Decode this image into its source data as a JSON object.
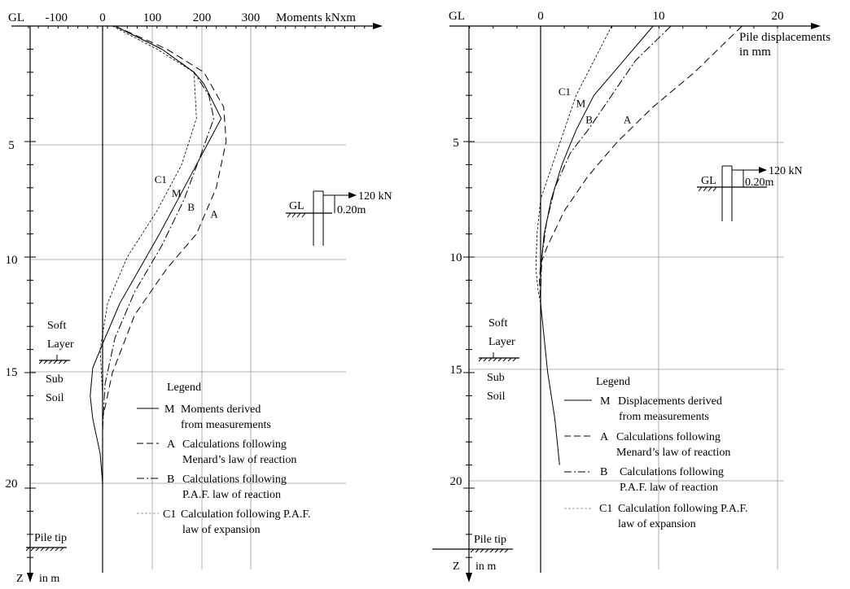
{
  "chart_data": [
    {
      "type": "line",
      "panel": "moments",
      "ground_label": "GL",
      "xlabel": "Moments kNxm",
      "ylabel": "Z",
      "ylabel_unit": "in m",
      "xlim": [
        -150,
        550
      ],
      "ylim": [
        0,
        23
      ],
      "x_ticks": [
        -100,
        0,
        100,
        200,
        300
      ],
      "y_ticks": [
        5,
        10,
        15,
        20
      ],
      "grid": true,
      "series": [
        {
          "name": "M",
          "style": "solid",
          "points": [
            [
              25,
              0
            ],
            [
              120,
              1
            ],
            [
              185,
              2
            ],
            [
              205,
              2.5
            ],
            [
              240,
              4
            ],
            [
              215,
              5
            ],
            [
              165,
              7
            ],
            [
              115,
              9
            ],
            [
              75,
              10.5
            ],
            [
              35,
              12
            ],
            [
              5,
              13.5
            ],
            [
              -20,
              14.8
            ],
            [
              -25,
              16
            ],
            [
              -20,
              17
            ],
            [
              -5,
              18.5
            ],
            [
              0,
              19.8
            ]
          ]
        },
        {
          "name": "A",
          "style": "dashed",
          "points": [
            [
              25,
              0
            ],
            [
              130,
              1
            ],
            [
              205,
              2
            ],
            [
              245,
              3.5
            ],
            [
              250,
              5
            ],
            [
              230,
              7
            ],
            [
              190,
              9
            ],
            [
              130,
              10.5
            ],
            [
              65,
              12.5
            ],
            [
              20,
              15
            ],
            [
              0,
              17
            ],
            [
              0,
              22.5
            ]
          ]
        },
        {
          "name": "B",
          "style": "dashdot",
          "points": [
            [
              25,
              0
            ],
            [
              120,
              1
            ],
            [
              185,
              2
            ],
            [
              215,
              3
            ],
            [
              225,
              4
            ],
            [
              200,
              5.5
            ],
            [
              165,
              7.5
            ],
            [
              120,
              9.5
            ],
            [
              65,
              11.5
            ],
            [
              25,
              13.5
            ],
            [
              5,
              15.5
            ],
            [
              0,
              17.5
            ],
            [
              0,
              22.5
            ]
          ]
        },
        {
          "name": "C1",
          "style": "thin-dashed",
          "points": [
            [
              20,
              0
            ],
            [
              110,
              1
            ],
            [
              185,
              2
            ],
            [
              190,
              4
            ],
            [
              160,
              6
            ],
            [
              110,
              8
            ],
            [
              50,
              10
            ],
            [
              10,
              12
            ],
            [
              -5,
              14
            ],
            [
              0,
              16
            ],
            [
              0,
              22.5
            ]
          ]
        }
      ],
      "curve_labels": [
        {
          "text": "C1",
          "x": 105,
          "y": 6.8
        },
        {
          "text": "M",
          "x": 140,
          "y": 7.4
        },
        {
          "text": "B",
          "x": 172,
          "y": 8.0
        },
        {
          "text": "A",
          "x": 218,
          "y": 8.3
        }
      ],
      "strata": {
        "upper": [
          "Soft",
          "Layer"
        ],
        "lower": [
          "Sub",
          "Soil"
        ],
        "boundary_z": 15
      },
      "pile_tip": {
        "label": "Pile tip",
        "z": 22.5
      },
      "inset": {
        "ground_label": "GL",
        "force": "120 kN",
        "offset": "0.20m"
      },
      "legend": {
        "title": "Legend",
        "entries": [
          {
            "symbol": "M",
            "style": "solid",
            "lines": [
              "Moments derived",
              "from measurements"
            ]
          },
          {
            "symbol": "A",
            "style": "dashed",
            "lines": [
              "Calculations following",
              "Menard’s law of reaction"
            ]
          },
          {
            "symbol": "B",
            "style": "dashdot",
            "lines": [
              "Calculations following",
              "P.A.F. law of reaction"
            ]
          },
          {
            "symbol": "C1",
            "style": "thin-dashed",
            "lines": [
              "Calculation following P.A.F.",
              "law of expansion"
            ]
          }
        ]
      }
    },
    {
      "type": "line",
      "panel": "displacements",
      "ground_label": "GL",
      "xlabel": "Pile displacements",
      "xlabel2": "in mm",
      "ylabel": "Z",
      "ylabel_unit": "in m",
      "xlim": [
        -6,
        21
      ],
      "ylim": [
        0,
        23
      ],
      "x_ticks": [
        0,
        10,
        20
      ],
      "y_ticks": [
        5,
        10,
        15,
        20
      ],
      "grid": true,
      "series": [
        {
          "name": "M",
          "style": "solid",
          "points": [
            [
              9.5,
              0
            ],
            [
              7,
              1.5
            ],
            [
              4.5,
              3
            ],
            [
              3,
              4.5
            ],
            [
              1.8,
              6
            ],
            [
              0.9,
              7.5
            ],
            [
              0.3,
              9
            ],
            [
              0,
              10.5
            ],
            [
              0,
              12
            ],
            [
              0.6,
              15
            ],
            [
              1.2,
              17
            ],
            [
              1.6,
              19
            ]
          ]
        },
        {
          "name": "A",
          "style": "dashed",
          "points": [
            [
              17,
              0
            ],
            [
              13,
              2
            ],
            [
              9.5,
              3.5
            ],
            [
              6.5,
              5
            ],
            [
              4,
              6.5
            ],
            [
              2,
              8
            ],
            [
              0.6,
              9.5
            ],
            [
              0,
              10.3
            ],
            [
              -0.1,
              11
            ],
            [
              0,
              12
            ]
          ]
        },
        {
          "name": "B",
          "style": "dashdot",
          "points": [
            [
              11,
              0
            ],
            [
              8,
              1.5
            ],
            [
              6,
              3
            ],
            [
              4,
              4.5
            ],
            [
              2.5,
              5.5
            ],
            [
              1.2,
              7
            ],
            [
              0.5,
              8.5
            ],
            [
              0.1,
              10
            ],
            [
              0,
              11.5
            ]
          ]
        },
        {
          "name": "C1",
          "style": "thin-dashed",
          "points": [
            [
              6,
              0
            ],
            [
              4.5,
              1.5
            ],
            [
              3,
              3
            ],
            [
              2,
              4.5
            ],
            [
              1,
              6
            ],
            [
              0,
              7.5
            ],
            [
              -0.3,
              9
            ],
            [
              -0.4,
              10.5
            ],
            [
              -0.2,
              11.5
            ],
            [
              0,
              12
            ]
          ]
        }
      ],
      "curve_labels": [
        {
          "text": "C1",
          "x": 1.5,
          "y": 3.0
        },
        {
          "text": "M",
          "x": 3.0,
          "y": 3.5
        },
        {
          "text": "B",
          "x": 3.8,
          "y": 4.2
        },
        {
          "text": "A",
          "x": 7.0,
          "y": 4.2
        }
      ],
      "strata": {
        "upper": [
          "Soft",
          "Layer"
        ],
        "lower": [
          "Sub",
          "Soil"
        ],
        "boundary_z": 14.5
      },
      "pile_tip": {
        "label": "Pile tip",
        "z": 22.5
      },
      "inset": {
        "ground_label": "GL",
        "force": "120 kN",
        "offset": "0.20m"
      },
      "legend": {
        "title": "Legend",
        "entries": [
          {
            "symbol": "M",
            "style": "solid",
            "lines": [
              "Displacements derived",
              "from measurements"
            ]
          },
          {
            "symbol": "A",
            "style": "dashed",
            "lines": [
              "Calculations following",
              "Menard’s law of reaction"
            ]
          },
          {
            "symbol": "B",
            "style": "dashdot",
            "lines": [
              "Calculations following",
              "P.A.F. law of reaction"
            ]
          },
          {
            "symbol": "C1",
            "style": "thin-dashed",
            "lines": [
              "Calculation following P.A.F.",
              "law of expansion"
            ]
          }
        ]
      }
    }
  ]
}
